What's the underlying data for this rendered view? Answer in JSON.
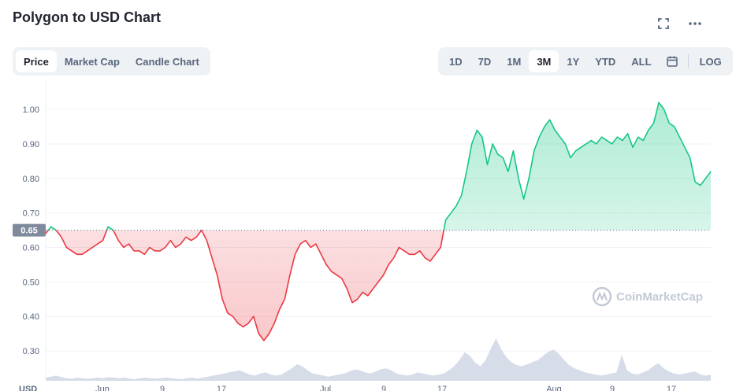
{
  "page": {
    "title": "Polygon to USD Chart"
  },
  "header_icons": [
    "expand-icon",
    "more-icon"
  ],
  "chart_type_tabs": {
    "items": [
      "Price",
      "Market Cap",
      "Candle Chart"
    ],
    "active": "Price"
  },
  "range_tabs": {
    "items": [
      "1D",
      "7D",
      "1M",
      "3M",
      "1Y",
      "YTD",
      "ALL"
    ],
    "active": "3M",
    "calendar_icon": "calendar-icon",
    "log_label": "LOG"
  },
  "watermark": "CoinMarketCap",
  "currency_label": "USD",
  "colors": {
    "up": "#16c784",
    "down": "#ea3943",
    "volume": "#cfd6e4",
    "baseline_badge": "#808a9d",
    "accent_bg": "#eff2f5"
  },
  "chart_data": {
    "type": "line",
    "title": "",
    "xlabel": "",
    "ylabel": "",
    "ylim": [
      0.25,
      1.08
    ],
    "y_ticks": [
      0.3,
      0.4,
      0.5,
      0.6,
      0.7,
      0.8,
      0.9,
      1.0
    ],
    "y_tick_labels": [
      "0.30",
      "0.40",
      "0.50",
      "0.60",
      "0.70",
      "0.80",
      "0.90",
      "1.00"
    ],
    "x_tick_labels": [
      "Jun",
      "9",
      "17",
      "Jul",
      "9",
      "17",
      "Aug",
      "9",
      "17"
    ],
    "baseline": 0.65,
    "baseline_label": "0.65",
    "grid": true,
    "series": [
      {
        "values": [
          0.64,
          0.66,
          0.65,
          0.63,
          0.6,
          0.59,
          0.58,
          0.58,
          0.59,
          0.6,
          0.61,
          0.62,
          0.66,
          0.65,
          0.62,
          0.6,
          0.61,
          0.59,
          0.59,
          0.58,
          0.6,
          0.59,
          0.59,
          0.6,
          0.62,
          0.6,
          0.61,
          0.63,
          0.62,
          0.63,
          0.65,
          0.62,
          0.57,
          0.52,
          0.45,
          0.41,
          0.4,
          0.38,
          0.37,
          0.38,
          0.4,
          0.35,
          0.33,
          0.35,
          0.38,
          0.42,
          0.45,
          0.52,
          0.58,
          0.61,
          0.62,
          0.6,
          0.61,
          0.58,
          0.55,
          0.53,
          0.52,
          0.51,
          0.48,
          0.44,
          0.45,
          0.47,
          0.46,
          0.48,
          0.5,
          0.52,
          0.55,
          0.57,
          0.6,
          0.59,
          0.58,
          0.58,
          0.59,
          0.57,
          0.56,
          0.58,
          0.6,
          0.68,
          0.7,
          0.72,
          0.75,
          0.82,
          0.9,
          0.94,
          0.92,
          0.84,
          0.9,
          0.87,
          0.86,
          0.82,
          0.88,
          0.8,
          0.74,
          0.8,
          0.88,
          0.92,
          0.95,
          0.97,
          0.94,
          0.92,
          0.9,
          0.86,
          0.88,
          0.89,
          0.9,
          0.91,
          0.9,
          0.92,
          0.91,
          0.9,
          0.92,
          0.91,
          0.93,
          0.89,
          0.92,
          0.91,
          0.94,
          0.96,
          1.02,
          1.0,
          0.96,
          0.95,
          0.92,
          0.89,
          0.86,
          0.79,
          0.78,
          0.8,
          0.82
        ]
      }
    ],
    "volume": [
      0.06,
      0.08,
      0.1,
      0.07,
      0.05,
      0.04,
      0.06,
      0.05,
      0.04,
      0.05,
      0.06,
      0.05,
      0.07,
      0.06,
      0.05,
      0.06,
      0.04,
      0.03,
      0.05,
      0.06,
      0.05,
      0.04,
      0.05,
      0.06,
      0.05,
      0.04,
      0.03,
      0.05,
      0.06,
      0.04,
      0.06,
      0.08,
      0.1,
      0.12,
      0.14,
      0.16,
      0.18,
      0.2,
      0.16,
      0.12,
      0.1,
      0.14,
      0.16,
      0.12,
      0.1,
      0.12,
      0.18,
      0.24,
      0.32,
      0.28,
      0.2,
      0.14,
      0.12,
      0.1,
      0.08,
      0.1,
      0.12,
      0.14,
      0.18,
      0.22,
      0.2,
      0.16,
      0.14,
      0.18,
      0.22,
      0.24,
      0.2,
      0.14,
      0.12,
      0.1,
      0.12,
      0.16,
      0.14,
      0.12,
      0.1,
      0.12,
      0.14,
      0.2,
      0.28,
      0.4,
      0.55,
      0.48,
      0.35,
      0.28,
      0.4,
      0.62,
      0.82,
      0.6,
      0.45,
      0.35,
      0.3,
      0.28,
      0.32,
      0.36,
      0.4,
      0.48,
      0.56,
      0.6,
      0.52,
      0.4,
      0.3,
      0.24,
      0.2,
      0.16,
      0.14,
      0.12,
      0.1,
      0.12,
      0.14,
      0.16,
      0.5,
      0.2,
      0.14,
      0.12,
      0.16,
      0.2,
      0.28,
      0.34,
      0.24,
      0.18,
      0.14,
      0.12,
      0.14,
      0.16,
      0.18,
      0.12,
      0.1,
      0.12
    ]
  }
}
